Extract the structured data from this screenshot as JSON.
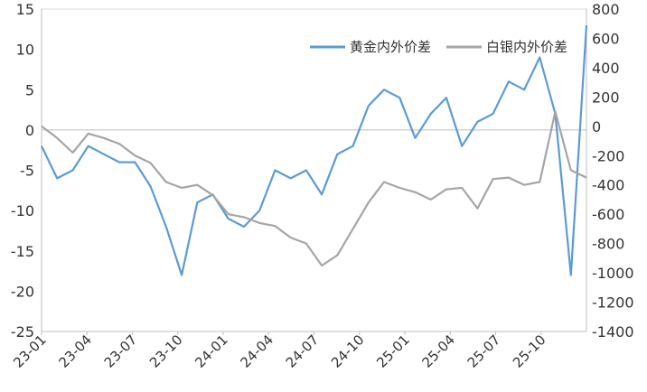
{
  "chart_data": {
    "type": "line",
    "title": "",
    "xlabel": "",
    "ylabel_left": "",
    "ylabel_right": "",
    "x_tick_labels": [
      "23-01",
      "23-04",
      "23-07",
      "23-10",
      "24-01",
      "24-04",
      "24-07",
      "24-10",
      "25-01",
      "25-04",
      "25-07",
      "25-10"
    ],
    "left_axis": {
      "min": -25,
      "max": 15,
      "ticks": [
        "-25",
        "-20",
        "-15",
        "-10",
        "-5",
        "0",
        "5",
        "10",
        "15"
      ]
    },
    "right_axis": {
      "min": -1400,
      "max": 800,
      "ticks": [
        "-1400",
        "-1200",
        "-1000",
        "-800",
        "-600",
        "-400",
        "-200",
        "0",
        "200",
        "400",
        "600",
        "800"
      ]
    },
    "legend_position": "top-right",
    "zero_line": true,
    "series": [
      {
        "name": "黄金内外价差",
        "axis": "left",
        "color": "#5b9bd5",
        "x": [
          "23-01",
          "23-02",
          "23-03",
          "23-04",
          "23-05",
          "23-06",
          "23-07",
          "23-08",
          "23-09",
          "23-10",
          "23-11",
          "23-12",
          "24-01",
          "24-02",
          "24-03",
          "24-04",
          "24-05",
          "24-06",
          "24-07",
          "24-08",
          "24-09",
          "24-10",
          "24-11",
          "24-12",
          "25-01",
          "25-02",
          "25-03",
          "25-04",
          "25-05",
          "25-06",
          "25-07",
          "25-08",
          "25-09",
          "25-10",
          "25-11",
          "25-12"
        ],
        "values": [
          -2,
          -6,
          -5,
          -2,
          -3,
          -4,
          -4,
          -7,
          -12,
          -18,
          -9,
          -8,
          -11,
          -12,
          -10,
          -5,
          -6,
          -5,
          -8,
          -3,
          -2,
          3,
          5,
          4,
          -1,
          2,
          4,
          -2,
          1,
          2,
          6,
          5,
          9,
          2,
          -18,
          13
        ]
      },
      {
        "name": "白银内外价差",
        "axis": "right",
        "color": "#a5a5a5",
        "x": [
          "23-01",
          "23-02",
          "23-03",
          "23-04",
          "23-05",
          "23-06",
          "23-07",
          "23-08",
          "23-09",
          "23-10",
          "23-11",
          "23-12",
          "24-01",
          "24-02",
          "24-03",
          "24-04",
          "24-05",
          "24-06",
          "24-07",
          "24-08",
          "24-09",
          "24-10",
          "24-11",
          "24-12",
          "25-01",
          "25-02",
          "25-03",
          "25-04",
          "25-05",
          "25-06",
          "25-07",
          "25-08",
          "25-09",
          "25-10",
          "25-11",
          "25-12"
        ],
        "values": [
          0,
          -80,
          -180,
          -50,
          -80,
          -120,
          -200,
          -250,
          -380,
          -420,
          -400,
          -470,
          -600,
          -620,
          -660,
          -680,
          -760,
          -800,
          -950,
          -880,
          -700,
          -520,
          -380,
          -420,
          -450,
          -500,
          -430,
          -420,
          -560,
          -360,
          -350,
          -400,
          -380,
          100,
          -300,
          -350
        ]
      }
    ]
  }
}
